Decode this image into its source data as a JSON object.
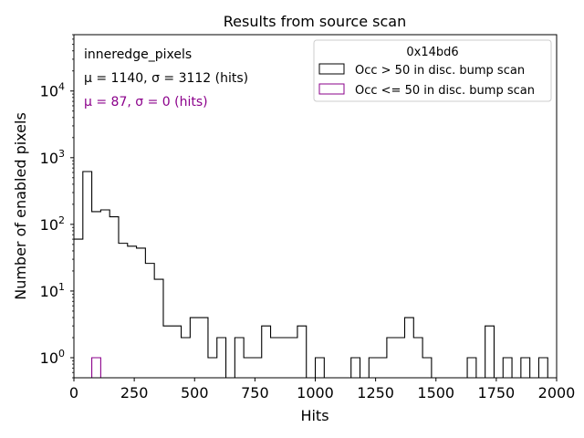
{
  "chart_data": {
    "type": "histogram",
    "title": "Results from source scan",
    "xlabel": "Hits",
    "ylabel": "Number of enabled pixels",
    "xlim": [
      0,
      2000
    ],
    "ylim": [
      0.5,
      70000
    ],
    "yscale": "log",
    "x_ticks": [
      0,
      250,
      500,
      750,
      1000,
      1250,
      1500,
      1750,
      2000
    ],
    "x_tick_labels": [
      "0",
      "250",
      "500",
      "750",
      "1000",
      "1250",
      "1500",
      "1750",
      "2000"
    ],
    "y_ticks": [
      1,
      10,
      100,
      1000,
      10000
    ],
    "y_tick_labels": [
      {
        "base": "10",
        "exp": "0"
      },
      {
        "base": "10",
        "exp": "1"
      },
      {
        "base": "10",
        "exp": "2"
      },
      {
        "base": "10",
        "exp": "3"
      },
      {
        "base": "10",
        "exp": "4"
      }
    ],
    "bin_edges_start": 0,
    "bin_width": 37.04,
    "annotations": [
      {
        "text": "inneredge_pixels",
        "color": "#000000"
      },
      {
        "text": "μ = 1140, σ = 3112 (hits)",
        "color": "#000000"
      },
      {
        "text": "μ = 87, σ = 0 (hits)",
        "color": "#8b008b"
      }
    ],
    "legend": {
      "title": "0x14bd6",
      "position": "top-right"
    },
    "series": [
      {
        "name": "Occ > 50 in disc. bump scan",
        "color": "#000000",
        "counts": [
          60,
          620,
          155,
          165,
          130,
          52,
          47,
          44,
          26,
          15,
          3,
          3,
          2,
          4,
          4,
          1,
          2,
          0,
          2,
          1,
          1,
          3,
          2,
          2,
          2,
          3,
          0,
          1,
          0,
          0,
          0,
          1,
          0,
          1,
          1,
          2,
          2,
          4,
          2,
          1,
          0,
          0,
          0,
          0,
          1,
          0,
          3,
          0,
          1,
          0,
          1,
          0,
          1,
          0
        ]
      },
      {
        "name": "Occ <= 50 in disc. bump scan",
        "color": "#8b008b",
        "counts": [
          0,
          0,
          1,
          0,
          0,
          0,
          0,
          0,
          0,
          0,
          0,
          0,
          0,
          0,
          0,
          0,
          0,
          0,
          0,
          0,
          0,
          0,
          0,
          0,
          0,
          0,
          0,
          0,
          0,
          0,
          0,
          0,
          0,
          0,
          0,
          0,
          0,
          0,
          0,
          0,
          0,
          0,
          0,
          0,
          0,
          0,
          0,
          0,
          0,
          0,
          0,
          0,
          0,
          0
        ]
      }
    ]
  }
}
